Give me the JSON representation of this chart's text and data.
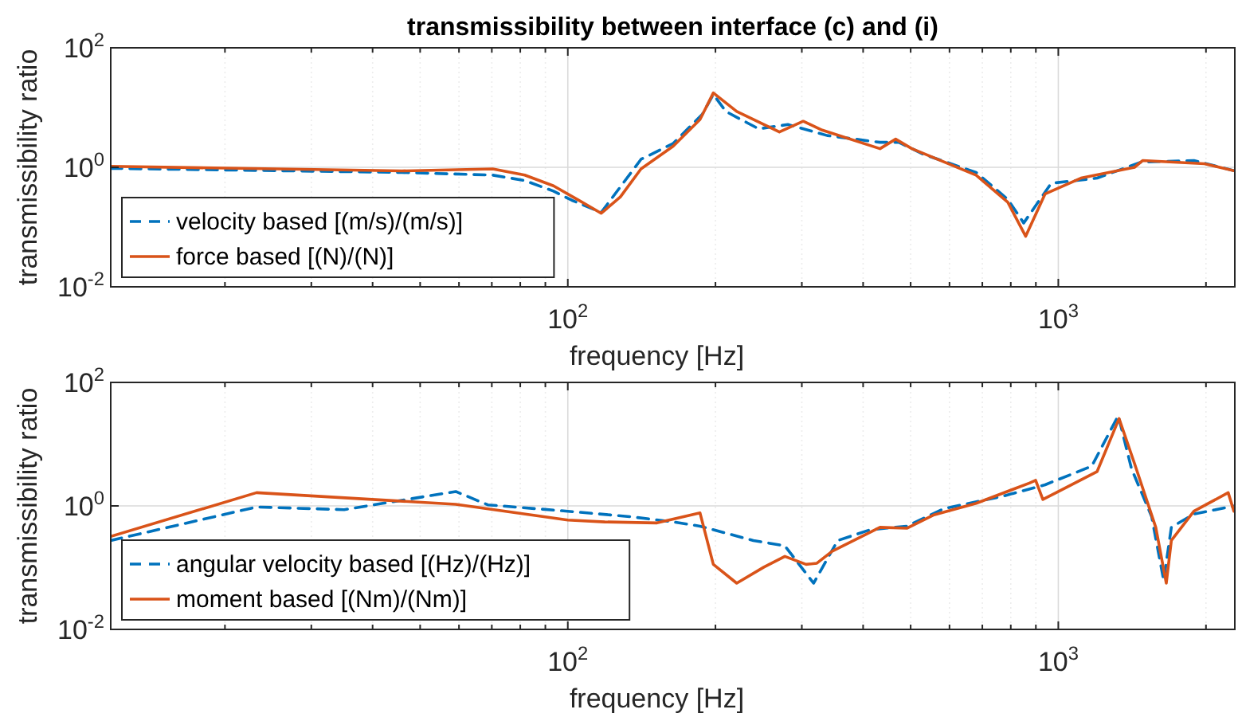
{
  "chart_data": [
    {
      "type": "line",
      "title": "transmissibility between interface (c) and (i)",
      "xlabel": "frequency [Hz]",
      "ylabel": "transmissibility ratio",
      "log": "xy",
      "grid": true,
      "legend": "bottom left",
      "xlim": [
        11.7,
        2290
      ],
      "ylim": [
        0.01,
        100
      ],
      "xticks": [
        {
          "value": 20,
          "label": null
        },
        {
          "value": 30,
          "label": null
        },
        {
          "value": 40,
          "label": null
        },
        {
          "value": 50,
          "label": null
        },
        {
          "value": 60,
          "label": null
        },
        {
          "value": 70,
          "label": null
        },
        {
          "value": 80,
          "label": null
        },
        {
          "value": 90,
          "label": null
        },
        {
          "value": 100,
          "label": "10$^{2}$"
        },
        {
          "value": 200,
          "label": null
        },
        {
          "value": 300,
          "label": null
        },
        {
          "value": 400,
          "label": null
        },
        {
          "value": 500,
          "label": null
        },
        {
          "value": 600,
          "label": null
        },
        {
          "value": 700,
          "label": null
        },
        {
          "value": 800,
          "label": null
        },
        {
          "value": 900,
          "label": null
        },
        {
          "value": 1000,
          "label": "10$^{3}$"
        },
        {
          "value": 2000,
          "label": null
        }
      ],
      "yticks": [
        {
          "value": 0.01,
          "label": "10$^{-2}$"
        },
        {
          "value": 1,
          "label": "10$^{0}$"
        },
        {
          "value": 100,
          "label": "10$^{2}$"
        }
      ],
      "series": [
        {
          "name": "velocity based [(m/s)/(m/s)]",
          "color": "#0072bd",
          "line_style": "dashed",
          "x": [
            11.7,
            45.9,
            70.3,
            81.7,
            93.5,
            102,
            117,
            141,
            164,
            188,
            198,
            210,
            245,
            281,
            338,
            433,
            473,
            530,
            680,
            789,
            850,
            967,
            1200,
            1473,
            1890,
            2290
          ],
          "values": [
            0.96,
            0.82,
            0.74,
            0.6,
            0.4,
            0.28,
            0.176,
            1.36,
            2.51,
            7.7,
            16.6,
            8.6,
            4.4,
            5.2,
            3.4,
            2.62,
            2.62,
            1.66,
            0.82,
            0.29,
            0.117,
            0.54,
            0.66,
            1.22,
            1.3,
            0.87
          ]
        },
        {
          "name": "force based [(N)/(N)]",
          "color": "#d95319",
          "line_style": "solid",
          "x": [
            11.7,
            45.9,
            70.3,
            81.7,
            93.5,
            104.6,
            117,
            128,
            141,
            164,
            186,
            198,
            221,
            270,
            302,
            330,
            433,
            466,
            503,
            680,
            789,
            858,
            940,
            1112,
            1430,
            1487,
            1985,
            2290
          ],
          "values": [
            1.04,
            0.87,
            0.94,
            0.74,
            0.49,
            0.29,
            0.17,
            0.32,
            0.94,
            2.26,
            6.3,
            17.6,
            8.6,
            3.9,
            5.9,
            4.2,
            2.05,
            2.96,
            2.05,
            0.74,
            0.26,
            0.07,
            0.36,
            0.66,
            1.0,
            1.3,
            1.15,
            0.87
          ]
        }
      ]
    },
    {
      "type": "line",
      "xlabel": "frequency [Hz]",
      "ylabel": "transmissibility ratio",
      "log": "xy",
      "grid": true,
      "legend": "bottom left",
      "xlim": [
        11.7,
        2290
      ],
      "ylim": [
        0.01,
        100
      ],
      "xticks": [
        {
          "value": 20,
          "label": null
        },
        {
          "value": 30,
          "label": null
        },
        {
          "value": 40,
          "label": null
        },
        {
          "value": 50,
          "label": null
        },
        {
          "value": 60,
          "label": null
        },
        {
          "value": 70,
          "label": null
        },
        {
          "value": 80,
          "label": null
        },
        {
          "value": 90,
          "label": null
        },
        {
          "value": 100,
          "label": "10$^{2}$"
        },
        {
          "value": 200,
          "label": null
        },
        {
          "value": 300,
          "label": null
        },
        {
          "value": 400,
          "label": null
        },
        {
          "value": 500,
          "label": null
        },
        {
          "value": 600,
          "label": null
        },
        {
          "value": 700,
          "label": null
        },
        {
          "value": 800,
          "label": null
        },
        {
          "value": 900,
          "label": null
        },
        {
          "value": 1000,
          "label": "10$^{3}$"
        },
        {
          "value": 2000,
          "label": null
        }
      ],
      "yticks": [
        {
          "value": 0.01,
          "label": "10$^{-2}$"
        },
        {
          "value": 1,
          "label": "10$^{0}$"
        },
        {
          "value": 100,
          "label": "10$^{2}$"
        }
      ],
      "series": [
        {
          "name": "angular velocity based [(Hz)/(Hz)]",
          "color": "#0072bd",
          "line_style": "dashed",
          "x": [
            11.7,
            23.2,
            35,
            59.1,
            68.7,
            100,
            134,
            164,
            186,
            239,
            277,
            317,
            355,
            413,
            491,
            584,
            769,
            940,
            1170,
            1325,
            1410,
            1550,
            1640,
            1700,
            1890,
            2290
          ],
          "values": [
            0.275,
            0.96,
            0.87,
            1.71,
            1.04,
            0.82,
            0.67,
            0.55,
            0.47,
            0.275,
            0.226,
            0.056,
            0.275,
            0.41,
            0.47,
            0.9,
            1.43,
            2.2,
            4.4,
            29,
            4.0,
            0.67,
            0.062,
            0.45,
            0.74,
            1.0
          ]
        },
        {
          "name": "moment based [(Nm)/(Nm)]",
          "color": "#d95319",
          "line_style": "solid",
          "x": [
            11.7,
            23.2,
            59.1,
            100,
            119,
            152,
            186,
            198,
            221,
            251,
            277,
            306,
            322,
            346,
            433,
            491,
            556,
            680,
            873,
            899,
            930,
            990,
            1200,
            1330,
            1430,
            1580,
            1660,
            1700,
            1890,
            2220,
            2280
          ],
          "values": [
            0.32,
            1.64,
            1.06,
            0.59,
            0.55,
            0.53,
            0.77,
            0.113,
            0.056,
            0.102,
            0.152,
            0.113,
            0.118,
            0.185,
            0.45,
            0.435,
            0.71,
            1.1,
            2.34,
            2.59,
            1.27,
            1.64,
            3.61,
            26,
            4.86,
            0.45,
            0.056,
            0.275,
            0.82,
            1.64,
            0.82
          ]
        }
      ]
    }
  ]
}
